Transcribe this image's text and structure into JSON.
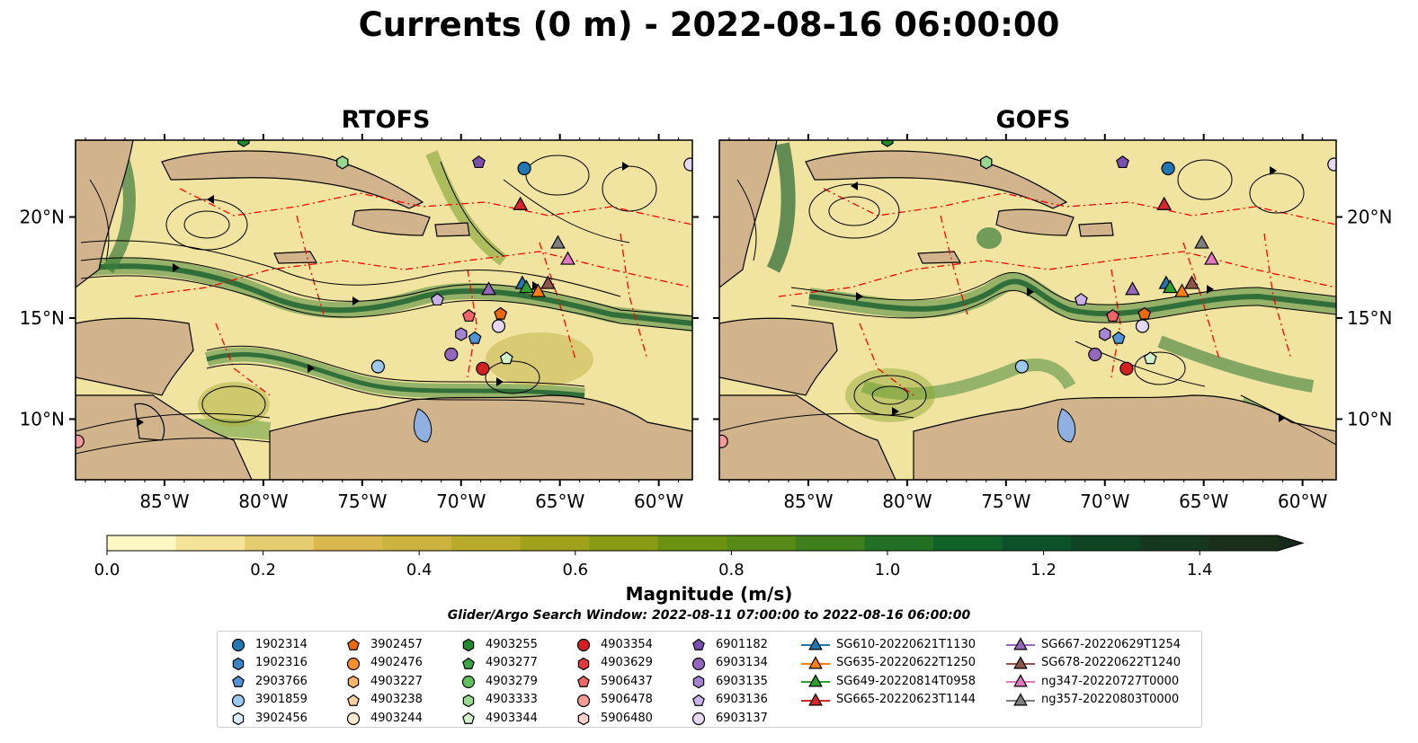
{
  "chart_data": {
    "type": "heatmap",
    "title": "Currents (0 m) - 2022-08-16 06:00:00",
    "panels": [
      {
        "title": "RTOFS"
      },
      {
        "title": "GOFS"
      }
    ],
    "x_ticks": [
      "85°W",
      "80°W",
      "75°W",
      "70°W",
      "65°W",
      "60°W"
    ],
    "x_tick_values": [
      -85,
      -80,
      -75,
      -70,
      -65,
      -60
    ],
    "y_ticks": [
      "20°N",
      "15°N",
      "10°N"
    ],
    "y_tick_values": [
      20,
      15,
      10
    ],
    "xlim": [
      -89.5,
      -58.3
    ],
    "ylim": [
      7,
      23.8
    ],
    "colorbar": {
      "label": "Magnitude (m/s)",
      "ticks": [
        "0.0",
        "0.2",
        "0.4",
        "0.6",
        "0.8",
        "1.0",
        "1.2",
        "1.4"
      ],
      "tick_values": [
        0,
        0.2,
        0.4,
        0.6,
        0.8,
        1.0,
        1.2,
        1.4
      ],
      "range": [
        0,
        1.5
      ],
      "extend": "max",
      "colors": [
        "#fdf8c4",
        "#f3e49a",
        "#e6cc70",
        "#d9b850",
        "#cbb33d",
        "#b8aa2a",
        "#a0a21c",
        "#879c14",
        "#6d9212",
        "#578a16",
        "#3f7f1e",
        "#237024",
        "#106228",
        "#0b5228",
        "#0e4424",
        "#16381e",
        "#1a2f1a"
      ]
    },
    "search_window": "Glider/Argo Search Window: 2022-08-11 07:00:00 to 2022-08-16 06:00:00",
    "legend": [
      [
        {
          "label": "1902314",
          "marker": "circle",
          "color": "#1f77b4"
        },
        {
          "label": "1902316",
          "marker": "hexagon",
          "color": "#3a84c2"
        },
        {
          "label": "2903766",
          "marker": "pentagon",
          "color": "#4f95d8"
        },
        {
          "label": "3901859",
          "marker": "circle",
          "color": "#9ec9ee"
        },
        {
          "label": "3902456",
          "marker": "hexagon",
          "color": "#d8ebfa"
        }
      ],
      [
        {
          "label": "3902457",
          "marker": "pentagon",
          "color": "#ec6a0e"
        },
        {
          "label": "4902476",
          "marker": "circle",
          "color": "#fb8f2e"
        },
        {
          "label": "4903227",
          "marker": "hexagon",
          "color": "#fdb56b"
        },
        {
          "label": "4903238",
          "marker": "pentagon",
          "color": "#fdcf9f"
        },
        {
          "label": "4903244",
          "marker": "circle",
          "color": "#fee8d0"
        }
      ],
      [
        {
          "label": "4903255",
          "marker": "hexagon",
          "color": "#238b2e"
        },
        {
          "label": "4903277",
          "marker": "pentagon",
          "color": "#3aa845"
        },
        {
          "label": "4903279",
          "marker": "circle",
          "color": "#5fc25c"
        },
        {
          "label": "4903333",
          "marker": "hexagon",
          "color": "#98d98f"
        },
        {
          "label": "4903344",
          "marker": "pentagon",
          "color": "#d3f1c9"
        }
      ],
      [
        {
          "label": "4903354",
          "marker": "circle",
          "color": "#d42020"
        },
        {
          "label": "4903629",
          "marker": "hexagon",
          "color": "#e5383c"
        },
        {
          "label": "5906437",
          "marker": "pentagon",
          "color": "#f06565"
        },
        {
          "label": "5906478",
          "marker": "circle",
          "color": "#f79a96"
        },
        {
          "label": "5906480",
          "marker": "hexagon",
          "color": "#fcd1cd"
        }
      ],
      [
        {
          "label": "6901182",
          "marker": "pentagon",
          "color": "#7a4fb0"
        },
        {
          "label": "6903134",
          "marker": "circle",
          "color": "#9467bd"
        },
        {
          "label": "6903135",
          "marker": "hexagon",
          "color": "#a684d4"
        },
        {
          "label": "6903136",
          "marker": "pentagon",
          "color": "#c9b1ec"
        },
        {
          "label": "6903137",
          "marker": "circle",
          "color": "#e6d7f7"
        }
      ],
      [
        {
          "label": "SG610-20220621T1130",
          "marker": "triangle",
          "color": "#1f77b4"
        },
        {
          "label": "SG635-20220622T1250",
          "marker": "triangle",
          "color": "#ff7f0e"
        },
        {
          "label": "SG649-20220814T0958",
          "marker": "triangle",
          "color": "#2ca02c"
        },
        {
          "label": "SG665-20220623T1144",
          "marker": "triangle",
          "color": "#d62728"
        }
      ],
      [
        {
          "label": "SG667-20220629T1254",
          "marker": "triangle",
          "color": "#9467bd"
        },
        {
          "label": "SG678-20220622T1240",
          "marker": "triangle",
          "color": "#8c564b"
        },
        {
          "label": "ng347-20220727T0000",
          "marker": "triangle",
          "color": "#e377c2"
        },
        {
          "label": "ng357-20220803T0000",
          "marker": "triangle",
          "color": "#7f7f7f"
        }
      ]
    ],
    "points": [
      {
        "label": "1902314",
        "lon": -66.8,
        "lat": 22.4
      },
      {
        "label": "2903766",
        "lon": -69.3,
        "lat": 14.0
      },
      {
        "label": "3901859",
        "lon": -74.2,
        "lat": 12.6
      },
      {
        "label": "3902457",
        "lon": -68.0,
        "lat": 15.2
      },
      {
        "label": "4903255",
        "lon": -81.0,
        "lat": 23.8
      },
      {
        "label": "4903333",
        "lon": -76.0,
        "lat": 22.7
      },
      {
        "label": "4903344",
        "lon": -67.7,
        "lat": 13.0
      },
      {
        "label": "4903354",
        "lon": -68.9,
        "lat": 12.5
      },
      {
        "label": "5906437",
        "lon": -69.6,
        "lat": 15.1
      },
      {
        "label": "5906478",
        "lon": -89.4,
        "lat": 8.9
      },
      {
        "label": "6901182",
        "lon": -69.1,
        "lat": 22.7
      },
      {
        "label": "6903134",
        "lon": -70.5,
        "lat": 13.2
      },
      {
        "label": "6903135",
        "lon": -70.0,
        "lat": 14.2
      },
      {
        "label": "6903136",
        "lon": -71.2,
        "lat": 15.9
      },
      {
        "label": "6903137",
        "lon": -68.1,
        "lat": 14.6
      },
      {
        "label": "6903137",
        "lon": -58.4,
        "lat": 22.6
      },
      {
        "label": "SG610-20220621T1130",
        "lon": -66.9,
        "lat": 16.7
      },
      {
        "label": "SG635-20220622T1250",
        "lon": -66.1,
        "lat": 16.3
      },
      {
        "label": "SG649-20220814T0958",
        "lon": -66.7,
        "lat": 16.5
      },
      {
        "label": "SG665-20220623T1144",
        "lon": -67.0,
        "lat": 20.6
      },
      {
        "label": "SG667-20220629T1254",
        "lon": -68.6,
        "lat": 16.4
      },
      {
        "label": "SG678-20220622T1240",
        "lon": -65.6,
        "lat": 16.7
      },
      {
        "label": "ng347-20220727T0000",
        "lon": -64.6,
        "lat": 17.9
      },
      {
        "label": "ng357-20220803T0000",
        "lon": -65.1,
        "lat": 18.7
      }
    ]
  }
}
